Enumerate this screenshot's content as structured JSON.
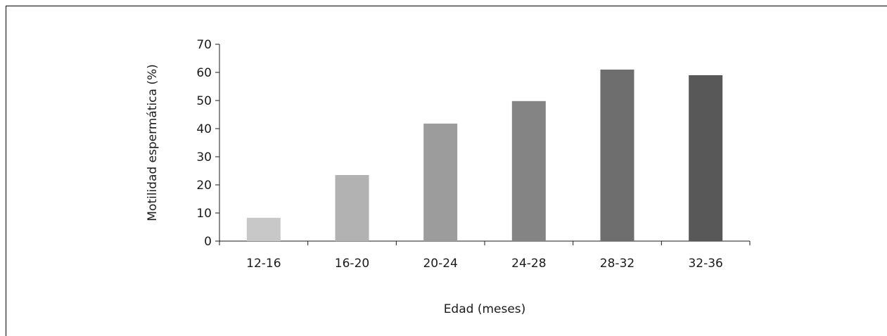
{
  "chart_data": {
    "type": "bar",
    "categories": [
      "12-16",
      "16-20",
      "20-24",
      "24-28",
      "28-32",
      "32-36"
    ],
    "values": [
      8.3,
      23.5,
      41.8,
      49.8,
      61,
      59
    ],
    "bar_colors": [
      "#c8c8c8",
      "#b2b2b2",
      "#9c9c9c",
      "#848484",
      "#6e6e6e",
      "#585858"
    ],
    "title": "",
    "xlabel": "Edad (meses)",
    "ylabel": "Motilidad espermática (%)",
    "ylim": [
      0,
      70
    ],
    "yticks": [
      0,
      10,
      20,
      30,
      40,
      50,
      60,
      70
    ],
    "grid": false,
    "legend": "none"
  }
}
